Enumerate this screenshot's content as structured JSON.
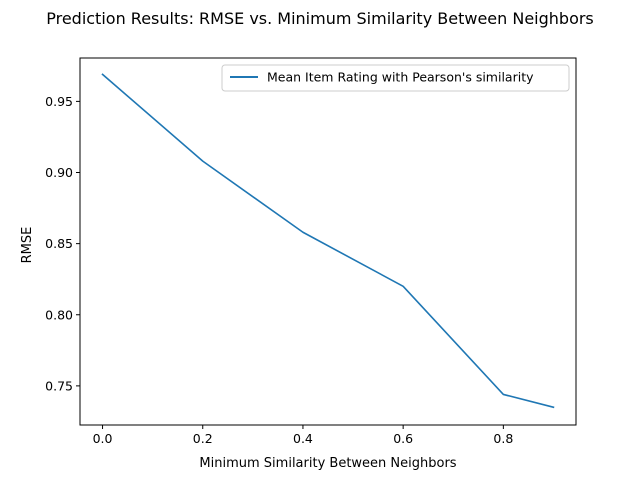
{
  "chart_data": {
    "type": "line",
    "title": "Prediction Results: RMSE vs. Minimum Similarity Between Neighbors",
    "xlabel": "Minimum Similarity Between Neighbors",
    "ylabel": "RMSE",
    "xlim": [
      -0.045,
      0.945
    ],
    "ylim": [
      0.7225,
      0.9805
    ],
    "xticks": [
      0.0,
      0.2,
      0.4,
      0.6,
      0.8
    ],
    "xtick_labels": [
      "0.0",
      "0.2",
      "0.4",
      "0.6",
      "0.8"
    ],
    "yticks": [
      0.75,
      0.8,
      0.85,
      0.9,
      0.95
    ],
    "ytick_labels": [
      "0.75",
      "0.80",
      "0.85",
      "0.90",
      "0.95"
    ],
    "grid": false,
    "legend_position": "top-right",
    "series": [
      {
        "name": "Mean Item Rating with Pearson's similarity",
        "color": "#1f77b4",
        "x": [
          0.0,
          0.2,
          0.4,
          0.6,
          0.8,
          0.9
        ],
        "y": [
          0.969,
          0.908,
          0.858,
          0.82,
          0.744,
          0.735
        ]
      }
    ]
  }
}
